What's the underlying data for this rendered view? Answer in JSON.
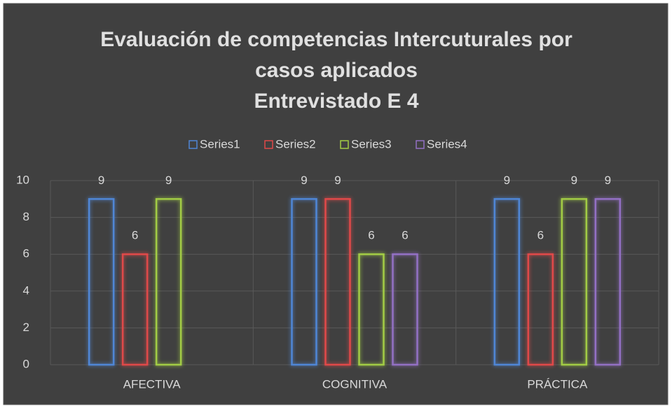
{
  "chart_data": {
    "type": "bar",
    "title": [
      "Evaluación de competencias Intercuturales por",
      "casos aplicados",
      "Entrevistado E 4"
    ],
    "categories": [
      "AFECTIVA",
      "COGNITIVA",
      "PRÁCTICA"
    ],
    "series": [
      {
        "name": "Series1",
        "color": "#4f86d6",
        "values": [
          9,
          9,
          9
        ]
      },
      {
        "name": "Series2",
        "color": "#e04848",
        "values": [
          6,
          9,
          6
        ]
      },
      {
        "name": "Series3",
        "color": "#a2cc44",
        "values": [
          9,
          6,
          9
        ]
      },
      {
        "name": "Series4",
        "color": "#9370c4",
        "values": [
          null,
          6,
          9
        ]
      }
    ],
    "ylim": [
      0,
      10
    ],
    "yticks": [
      0,
      2,
      4,
      6,
      8,
      10
    ],
    "grid": true,
    "legend": "top"
  }
}
